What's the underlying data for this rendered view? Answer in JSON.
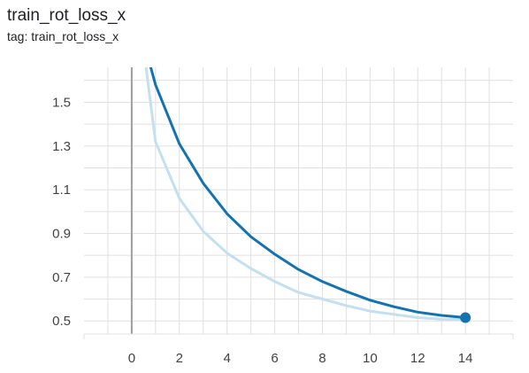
{
  "card": {
    "title": "train_rot_loss_x",
    "tag": "tag: train_rot_loss_x"
  },
  "colors": {
    "main_line": "#1273b0",
    "smoothed_background_line": "#c4dff0",
    "grid": "#e0e0e0",
    "zero_axis": "#9e9e9e",
    "marker": "#1273b0"
  },
  "chart_data": {
    "type": "line",
    "title": "",
    "xlabel": "",
    "ylabel": "",
    "xlim": [
      -2,
      16
    ],
    "ylim": [
      0.44,
      1.66
    ],
    "x_ticks": [
      0,
      2,
      4,
      6,
      8,
      10,
      12,
      14
    ],
    "y_ticks": [
      0.5,
      0.7,
      0.9,
      1.1,
      1.3,
      1.5
    ],
    "x_tick_labels": [
      "0",
      "2",
      "4",
      "6",
      "8",
      "10",
      "12",
      "14"
    ],
    "y_tick_labels": [
      "0.5",
      "0.7",
      "0.9",
      "1.1",
      "1.3",
      "1.5"
    ],
    "grid": true,
    "series": [
      {
        "role": "raw",
        "x": [
          0.6,
          1,
          2,
          3,
          4,
          5,
          6,
          7,
          8,
          9,
          10,
          11,
          12,
          13,
          14
        ],
        "y": [
          1.66,
          1.32,
          1.06,
          0.91,
          0.81,
          0.74,
          0.68,
          0.63,
          0.6,
          0.57,
          0.545,
          0.53,
          0.515,
          0.508,
          0.505
        ]
      },
      {
        "role": "smoothed",
        "x": [
          0.8,
          1,
          2,
          3,
          4,
          5,
          6,
          7,
          8,
          9,
          10,
          11,
          12,
          13,
          14
        ],
        "y": [
          1.66,
          1.58,
          1.31,
          1.13,
          0.99,
          0.885,
          0.805,
          0.735,
          0.68,
          0.635,
          0.595,
          0.565,
          0.54,
          0.525,
          0.515
        ]
      }
    ],
    "last_point": {
      "x": 14,
      "y": 0.515
    }
  }
}
